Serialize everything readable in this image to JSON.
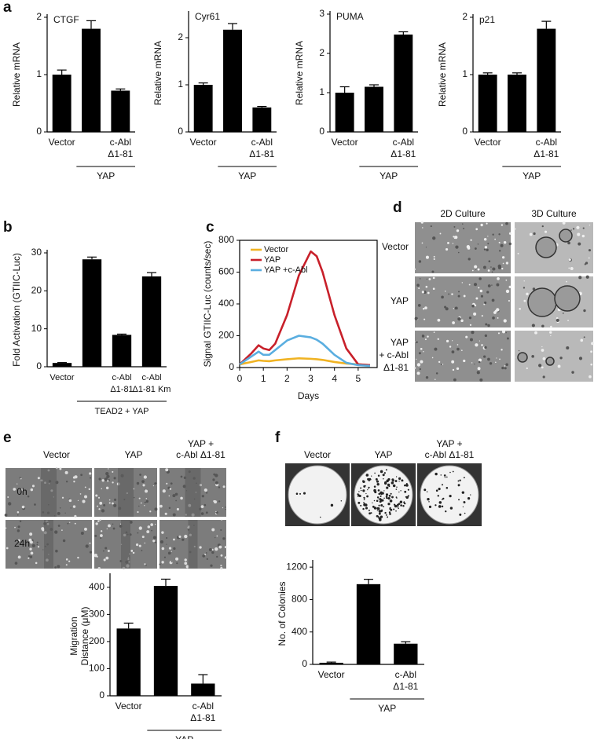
{
  "panel_labels": [
    "a",
    "b",
    "c",
    "d",
    "e",
    "f"
  ],
  "chart_data": [
    {
      "type": "bar",
      "title": "CTGF",
      "ylabel": [
        "Relative mRNA"
      ],
      "categories": [
        [
          "Vector"
        ],
        null,
        [
          "c-Abl",
          "Δ1-81"
        ]
      ],
      "values": [
        1.0,
        1.8,
        0.72
      ],
      "errors": [
        0.08,
        0.14,
        0.03
      ],
      "color": "#000000",
      "ylim": [
        0,
        2
      ],
      "yticks": [
        0,
        1,
        2
      ],
      "group_label": "YAP"
    },
    {
      "type": "bar",
      "title": "Cyr61",
      "ylabel": [
        "Relative mRNA"
      ],
      "categories": [
        [
          "Vector"
        ],
        null,
        [
          "c-Abl",
          "Δ1-81"
        ]
      ],
      "values": [
        1.0,
        2.17,
        0.52
      ],
      "errors": [
        0.04,
        0.13,
        0.02
      ],
      "color": "#000000",
      "ylim": [
        0,
        2.5
      ],
      "yticks": [
        0,
        1,
        2
      ],
      "group_label": "YAP"
    },
    {
      "type": "bar",
      "title": "PUMA",
      "ylabel": [
        "Relative mRNA"
      ],
      "categories": [
        [
          "Vector"
        ],
        null,
        [
          "c-Abl",
          "Δ1-81"
        ]
      ],
      "values": [
        1.0,
        1.15,
        2.48
      ],
      "errors": [
        0.15,
        0.05,
        0.07
      ],
      "color": "#000000",
      "ylim": [
        0,
        3
      ],
      "yticks": [
        0,
        1,
        2,
        3
      ],
      "group_label": "YAP"
    },
    {
      "type": "bar",
      "title": "p21",
      "ylabel": [
        "Relative mRNA"
      ],
      "categories": [
        [
          "Vector"
        ],
        null,
        [
          "c-Abl",
          "Δ1-81"
        ]
      ],
      "values": [
        1.0,
        1.0,
        1.8
      ],
      "errors": [
        0.03,
        0.03,
        0.13
      ],
      "color": "#000000",
      "ylim": [
        0,
        2
      ],
      "yticks": [
        0,
        1,
        2
      ],
      "group_label": "YAP"
    },
    {
      "type": "bar",
      "ylabel": [
        "Fold Activation (GTIIC-Luc)"
      ],
      "categories": [
        [
          "Vector"
        ],
        null,
        [
          "c-Abl",
          "Δ1-81"
        ],
        [
          "c-Abl",
          "Δ1-81 Km"
        ]
      ],
      "values": [
        1.0,
        28.3,
        8.4,
        23.8
      ],
      "errors": [
        0.1,
        0.6,
        0.2,
        1.0
      ],
      "color": "#000000",
      "ylim": [
        0,
        30
      ],
      "yticks": [
        0,
        10,
        20,
        30
      ],
      "group_label": "TEAD2 + YAP"
    },
    {
      "type": "line",
      "ylabel": [
        "Signal GTIIC-Luc (counts/sec)"
      ],
      "xlabel": "Days",
      "x": [
        0,
        0.5,
        0.8,
        1,
        1.25,
        1.5,
        2,
        2.5,
        3,
        3.25,
        3.5,
        4,
        4.5,
        5,
        5.5
      ],
      "series": [
        {
          "name": "Vector",
          "color": "#f0b323",
          "values": [
            20,
            35,
            45,
            42,
            40,
            45,
            52,
            58,
            55,
            52,
            48,
            35,
            25,
            20,
            15
          ]
        },
        {
          "name": "YAP",
          "color": "#c8202a",
          "values": [
            20,
            90,
            140,
            120,
            110,
            150,
            330,
            580,
            730,
            700,
            600,
            330,
            120,
            20,
            15
          ]
        },
        {
          "name": "YAP +c-Abl",
          "color": "#5aaee0",
          "values": [
            20,
            70,
            100,
            80,
            80,
            110,
            170,
            200,
            190,
            175,
            150,
            80,
            30,
            15,
            10
          ]
        }
      ],
      "xlim": [
        0,
        5.8
      ],
      "xticks": [
        0,
        1,
        2,
        3,
        4,
        5
      ],
      "ylim": [
        0,
        800
      ],
      "yticks": [
        0,
        200,
        400,
        600,
        800
      ]
    },
    {
      "type": "bar",
      "ylabel": [
        "Migration",
        "Distance (μM)"
      ],
      "categories": [
        [
          "Vector"
        ],
        null,
        [
          "c-Abl",
          "Δ1-81"
        ]
      ],
      "values": [
        248,
        405,
        45
      ],
      "errors": [
        20,
        25,
        33
      ],
      "color": "#000000",
      "ylim": [
        0,
        440
      ],
      "yticks": [
        0,
        100,
        200,
        300,
        400
      ],
      "group_label": "YAP"
    },
    {
      "type": "bar",
      "ylabel": [
        "No. of Colonies"
      ],
      "categories": [
        [
          "Vector"
        ],
        null,
        [
          "c-Abl",
          "Δ1-81"
        ]
      ],
      "values": [
        20,
        990,
        255
      ],
      "errors": [
        8,
        60,
        25
      ],
      "color": "#000000",
      "ylim": [
        0,
        1250
      ],
      "yticks": [
        0,
        400,
        800,
        1200
      ],
      "group_label": "YAP"
    }
  ],
  "culture_images": {
    "columns": [
      "2D Culture",
      "3D Culture"
    ],
    "rows": [
      [
        "Vector"
      ],
      [
        "YAP"
      ],
      [
        "YAP",
        "+ c-Abl",
        "Δ1-81"
      ]
    ]
  },
  "migration_images": {
    "columns": [
      [
        "Vector"
      ],
      [
        "YAP"
      ],
      [
        "YAP +",
        "c-Abl Δ1-81"
      ]
    ],
    "rows": [
      "0h",
      "24h"
    ]
  },
  "colony_images": {
    "columns": [
      [
        "Vector"
      ],
      [
        "YAP"
      ],
      [
        "YAP +",
        "c-Abl Δ1-81"
      ]
    ]
  }
}
